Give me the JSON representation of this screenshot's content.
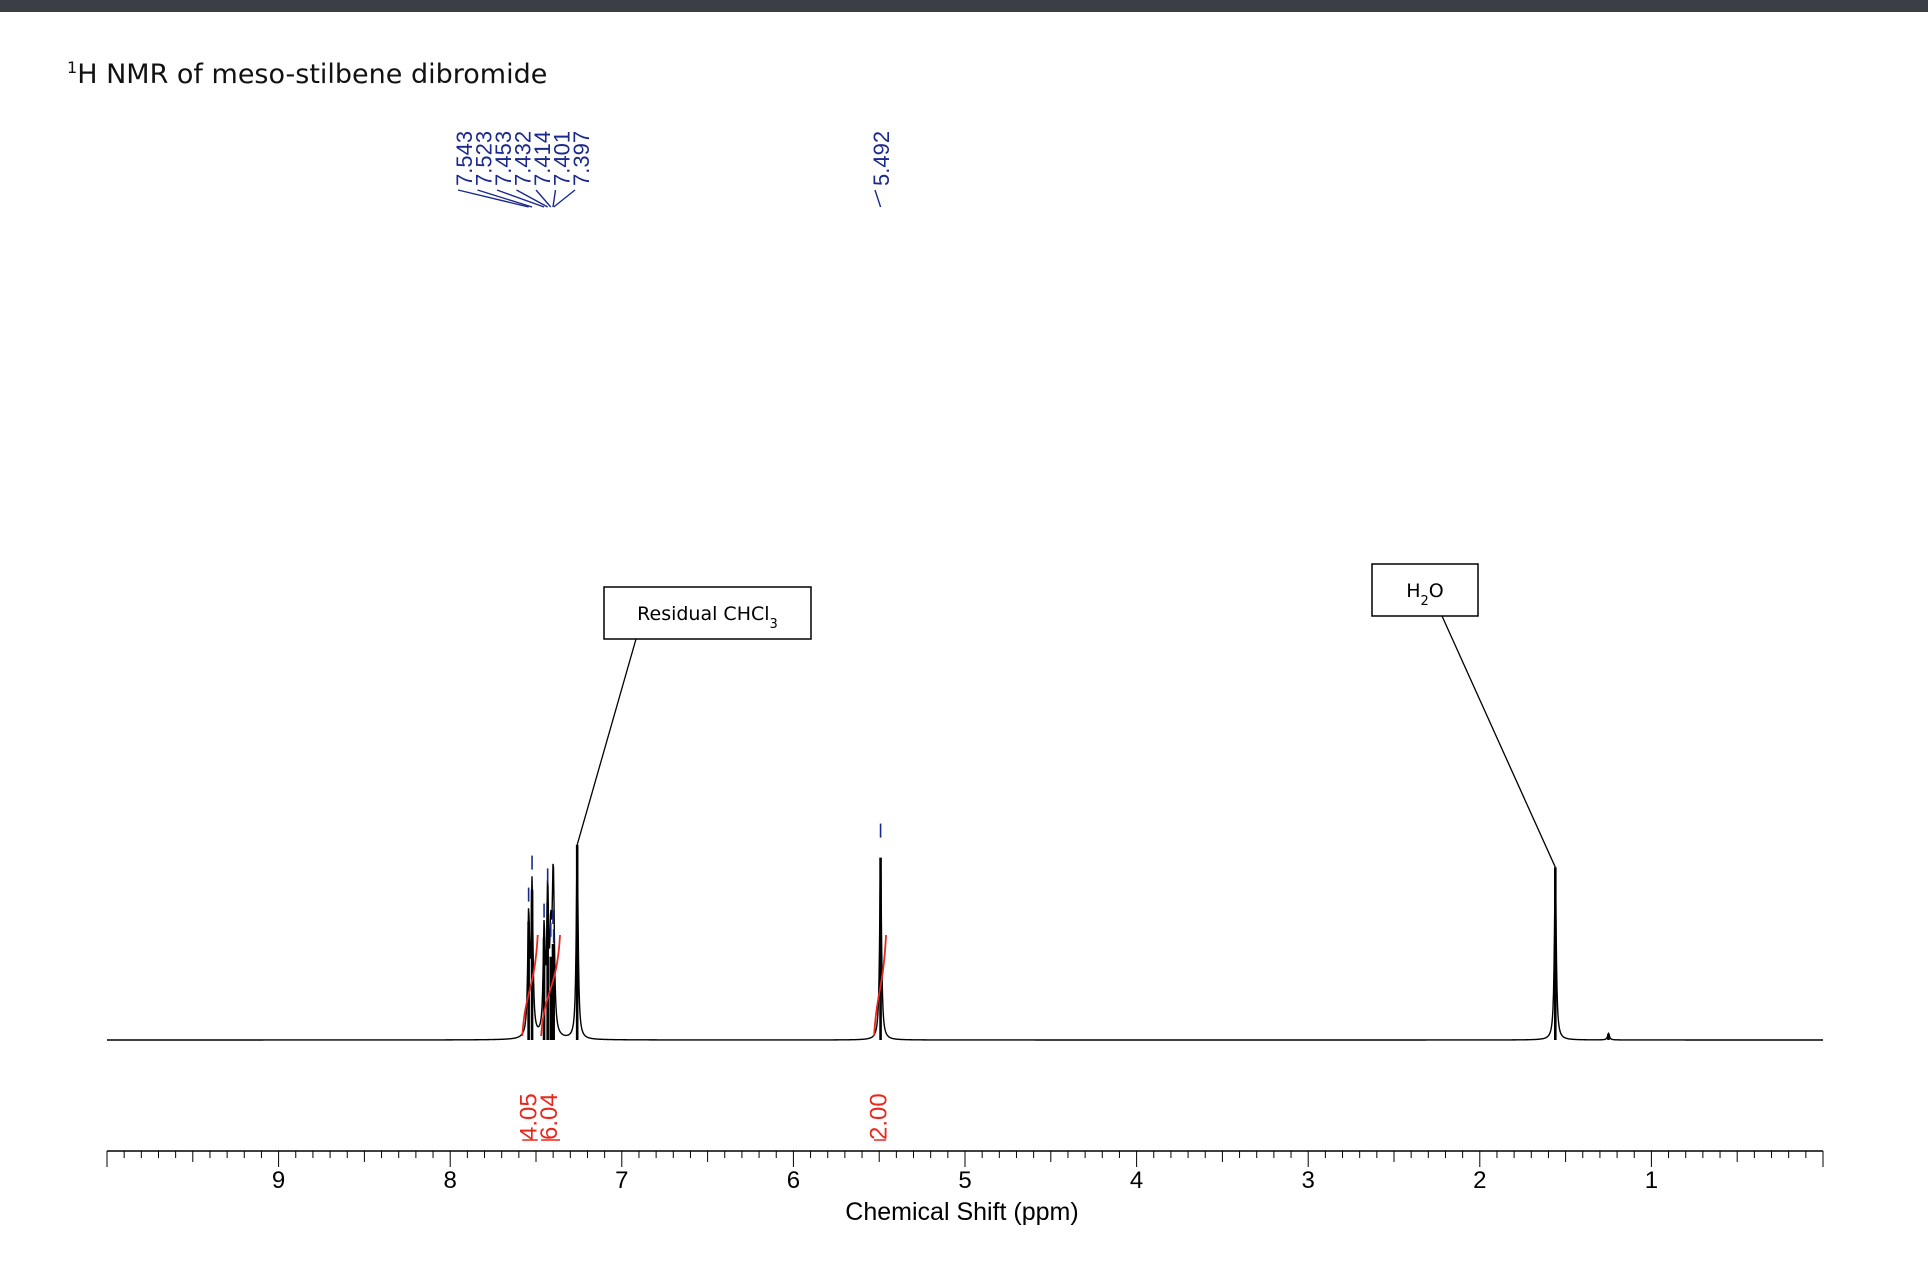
{
  "page": {
    "title_sup": "1",
    "title": "H NMR of meso-stilbene dibromide"
  },
  "chart_data": {
    "type": "line",
    "title": "1H NMR of meso-stilbene dibromide",
    "xlabel": "Chemical Shift (ppm)",
    "ylabel": "",
    "xlim": [
      10.0,
      0.0
    ],
    "x_reversed": true,
    "xticks": [
      9,
      8,
      7,
      6,
      5,
      4,
      3,
      2,
      1
    ],
    "y_axis_visible": false,
    "grid": false,
    "legend": "none",
    "series": [
      {
        "color": "#000000",
        "peaks": [
          {
            "ppm": 7.543,
            "rel_height": 0.37
          },
          {
            "ppm": 7.523,
            "rel_height": 0.47
          },
          {
            "ppm": 7.453,
            "rel_height": 0.32
          },
          {
            "ppm": 7.432,
            "rel_height": 0.43
          },
          {
            "ppm": 7.414,
            "rel_height": 0.26
          },
          {
            "ppm": 7.401,
            "rel_height": 0.3
          },
          {
            "ppm": 7.397,
            "rel_height": 0.24
          },
          {
            "ppm": 7.26,
            "rel_height": 0.61
          },
          {
            "ppm": 5.492,
            "rel_height": 0.57
          },
          {
            "ppm": 1.56,
            "rel_height": 0.54
          },
          {
            "ppm": 1.25,
            "rel_height": 0.02
          }
        ]
      }
    ],
    "peak_labels": {
      "color": "#1a2a8c",
      "groups": [
        {
          "values": [
            "7.543",
            "7.523",
            "7.453",
            "7.432",
            "7.414",
            "7.401",
            "7.397"
          ]
        },
        {
          "values": [
            "5.492"
          ]
        }
      ]
    },
    "integrals": {
      "color": "#e8281e",
      "regions": [
        {
          "value": "4.05",
          "from_ppm": 7.58,
          "to_ppm": 7.49
        },
        {
          "value": "6.04",
          "from_ppm": 7.47,
          "to_ppm": 7.36
        },
        {
          "value": "2.00",
          "from_ppm": 5.53,
          "to_ppm": 5.46
        }
      ]
    },
    "annotations": [
      {
        "text_main": "Residual CHCl",
        "text_sub": "3",
        "ppm": 7.26
      },
      {
        "text_main": "H",
        "text_sub": "2",
        "text_tail": "O",
        "ppm": 1.56
      }
    ]
  }
}
